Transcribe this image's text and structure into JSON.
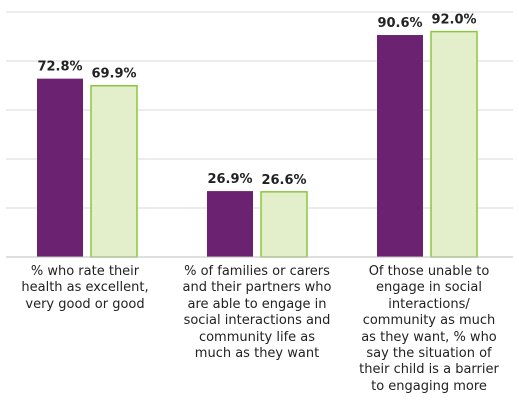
{
  "chart_data": {
    "type": "bar",
    "categories": [
      "% who rate their\nhealth as excellent,\nvery good or good",
      "% of families or carers\nand their partners who\nare able to engage in\nsocial interactions and\ncommunity life as\nmuch as they want",
      "Of those unable to\nengage in social\ninteractions/\ncommunity as much\nas they want, % who\nsay the situation of\ntheir child is a barrier\nto engaging more"
    ],
    "series": [
      {
        "values": [
          72.8,
          26.9,
          90.6
        ],
        "labels": [
          "72.8%",
          "26.9%",
          "90.6%"
        ]
      },
      {
        "values": [
          69.9,
          26.6,
          92.0
        ],
        "labels": [
          "69.9%",
          "26.6%",
          "92.0%"
        ]
      }
    ],
    "ylim": [
      0,
      100
    ],
    "grid": true,
    "colors": {
      "series_1_fill": "#6b2270",
      "series_2_fill": "#e3efcb",
      "series_2_border": "#8cc63f",
      "gridline": "#d9d9d9",
      "axis": "#bfbfbf",
      "text": "#222222"
    }
  }
}
